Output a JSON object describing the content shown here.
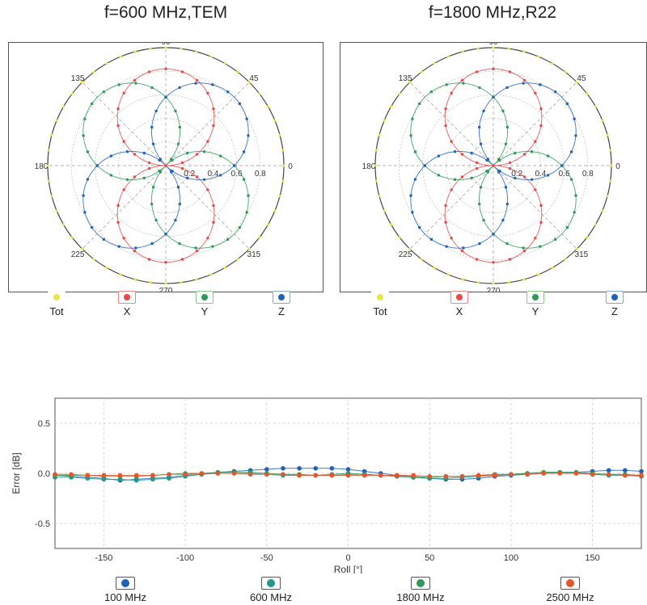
{
  "polar_titles": [
    "f=600 MHz,TEM",
    "f=1800 MHz,R22"
  ],
  "polar_legend": [
    "Tot",
    "X",
    "Y",
    "Z"
  ],
  "colors": {
    "tot": "#e6e64a",
    "x": "#e84848",
    "y": "#2e9a55",
    "z": "#1f62b8",
    "teal": "#1f9a8c",
    "orange": "#e8552a"
  },
  "chart_data": [
    {
      "type": "scatter",
      "title": "f=600 MHz,TEM",
      "coordinate_system": "polar",
      "angle_labels": [
        "0",
        "45",
        "90",
        "135",
        "180",
        "225",
        "270",
        "315"
      ],
      "radial_tick_labels": [
        "0.2",
        "0.4",
        "0.6",
        "0.8"
      ],
      "rlim": [
        0,
        1
      ],
      "legend": [
        "Tot",
        "X",
        "Y",
        "Z"
      ],
      "series": [
        {
          "name": "Tot",
          "pattern": "r = 1.0 (constant)"
        },
        {
          "name": "X",
          "pattern": "r = 0.82·|sin(theta)|",
          "max": 0.82,
          "lobes_at_deg": [
            90,
            270
          ]
        },
        {
          "name": "Y",
          "pattern": "r = 0.82·|sin(theta − 45°)|",
          "max": 0.82,
          "lobes_at_deg": [
            135,
            315
          ]
        },
        {
          "name": "Z",
          "pattern": "r = 0.82·|sin(theta + 45°)|",
          "max": 0.82,
          "lobes_at_deg": [
            45,
            225
          ]
        }
      ]
    },
    {
      "type": "scatter",
      "title": "f=1800 MHz,R22",
      "coordinate_system": "polar",
      "angle_labels": [
        "0",
        "45",
        "90",
        "135",
        "180",
        "225",
        "270",
        "315"
      ],
      "radial_tick_labels": [
        "0.2",
        "0.4",
        "0.6",
        "0.8"
      ],
      "rlim": [
        0,
        1
      ],
      "legend": [
        "Tot",
        "X",
        "Y",
        "Z"
      ],
      "series": [
        {
          "name": "Tot",
          "pattern": "r = 1.0 (constant)"
        },
        {
          "name": "X",
          "pattern": "r = 0.82·|sin(theta)|",
          "max": 0.82,
          "lobes_at_deg": [
            90,
            270
          ]
        },
        {
          "name": "Y",
          "pattern": "r = 0.82·|sin(theta − 45°)|",
          "max": 0.82,
          "lobes_at_deg": [
            135,
            315
          ]
        },
        {
          "name": "Z",
          "pattern": "r = 0.82·|sin(theta + 45°)|",
          "max": 0.82,
          "lobes_at_deg": [
            45,
            225
          ]
        }
      ]
    },
    {
      "type": "line",
      "xlabel": "Roll [°]",
      "ylabel": "Error [dB]",
      "xlim": [
        -180,
        180
      ],
      "ylim": [
        -0.75,
        0.75
      ],
      "xticks": [
        -150,
        -100,
        -50,
        0,
        50,
        100,
        150
      ],
      "yticks": [
        -0.5,
        0.0,
        0.5
      ],
      "ytick_labels": [
        "-0.5",
        "0.0",
        "0.5"
      ],
      "grid": true,
      "x": [
        -180,
        -170,
        -160,
        -150,
        -140,
        -130,
        -120,
        -110,
        -100,
        -90,
        -80,
        -70,
        -60,
        -50,
        -40,
        -30,
        -20,
        -10,
        0,
        10,
        20,
        30,
        40,
        50,
        60,
        70,
        80,
        90,
        100,
        110,
        120,
        130,
        140,
        150,
        160,
        170,
        180
      ],
      "series": [
        {
          "name": "100 MHz",
          "values": [
            -0.02,
            -0.03,
            -0.04,
            -0.05,
            -0.07,
            -0.06,
            -0.05,
            -0.04,
            -0.02,
            -0.01,
            0.01,
            0.02,
            0.03,
            0.04,
            0.05,
            0.05,
            0.05,
            0.05,
            0.04,
            0.02,
            0.0,
            -0.02,
            -0.04,
            -0.05,
            -0.06,
            -0.06,
            -0.05,
            -0.03,
            -0.02,
            -0.01,
            0.0,
            0.01,
            0.01,
            0.02,
            0.03,
            0.03,
            0.02
          ]
        },
        {
          "name": "600 MHz",
          "values": [
            -0.04,
            -0.04,
            -0.05,
            -0.06,
            -0.06,
            -0.07,
            -0.06,
            -0.05,
            -0.03,
            -0.01,
            0.0,
            0.0,
            0.0,
            -0.01,
            -0.02,
            -0.02,
            -0.02,
            -0.01,
            0.0,
            -0.01,
            -0.02,
            -0.03,
            -0.04,
            -0.05,
            -0.05,
            -0.04,
            -0.03,
            -0.02,
            -0.01,
            0.0,
            0.01,
            0.01,
            0.0,
            -0.01,
            -0.02,
            -0.02,
            -0.03
          ]
        },
        {
          "name": "1800 MHz",
          "values": [
            -0.02,
            -0.02,
            -0.02,
            -0.03,
            -0.03,
            -0.03,
            -0.02,
            -0.01,
            0.0,
            0.0,
            0.01,
            0.01,
            0.01,
            0.0,
            -0.01,
            -0.01,
            -0.02,
            -0.02,
            -0.01,
            -0.01,
            -0.02,
            -0.03,
            -0.03,
            -0.04,
            -0.03,
            -0.03,
            -0.02,
            -0.01,
            -0.01,
            0.0,
            0.01,
            0.01,
            0.01,
            0.0,
            -0.01,
            -0.01,
            -0.02
          ]
        },
        {
          "name": "2500 MHz",
          "values": [
            -0.01,
            -0.01,
            -0.02,
            -0.02,
            -0.02,
            -0.02,
            -0.02,
            -0.01,
            -0.01,
            0.0,
            0.0,
            0.0,
            -0.01,
            -0.01,
            -0.01,
            -0.02,
            -0.02,
            -0.02,
            -0.02,
            -0.02,
            -0.02,
            -0.02,
            -0.02,
            -0.03,
            -0.03,
            -0.03,
            -0.02,
            -0.02,
            -0.01,
            -0.01,
            0.0,
            0.0,
            0.0,
            -0.01,
            -0.01,
            -0.02,
            -0.02
          ]
        }
      ]
    }
  ]
}
